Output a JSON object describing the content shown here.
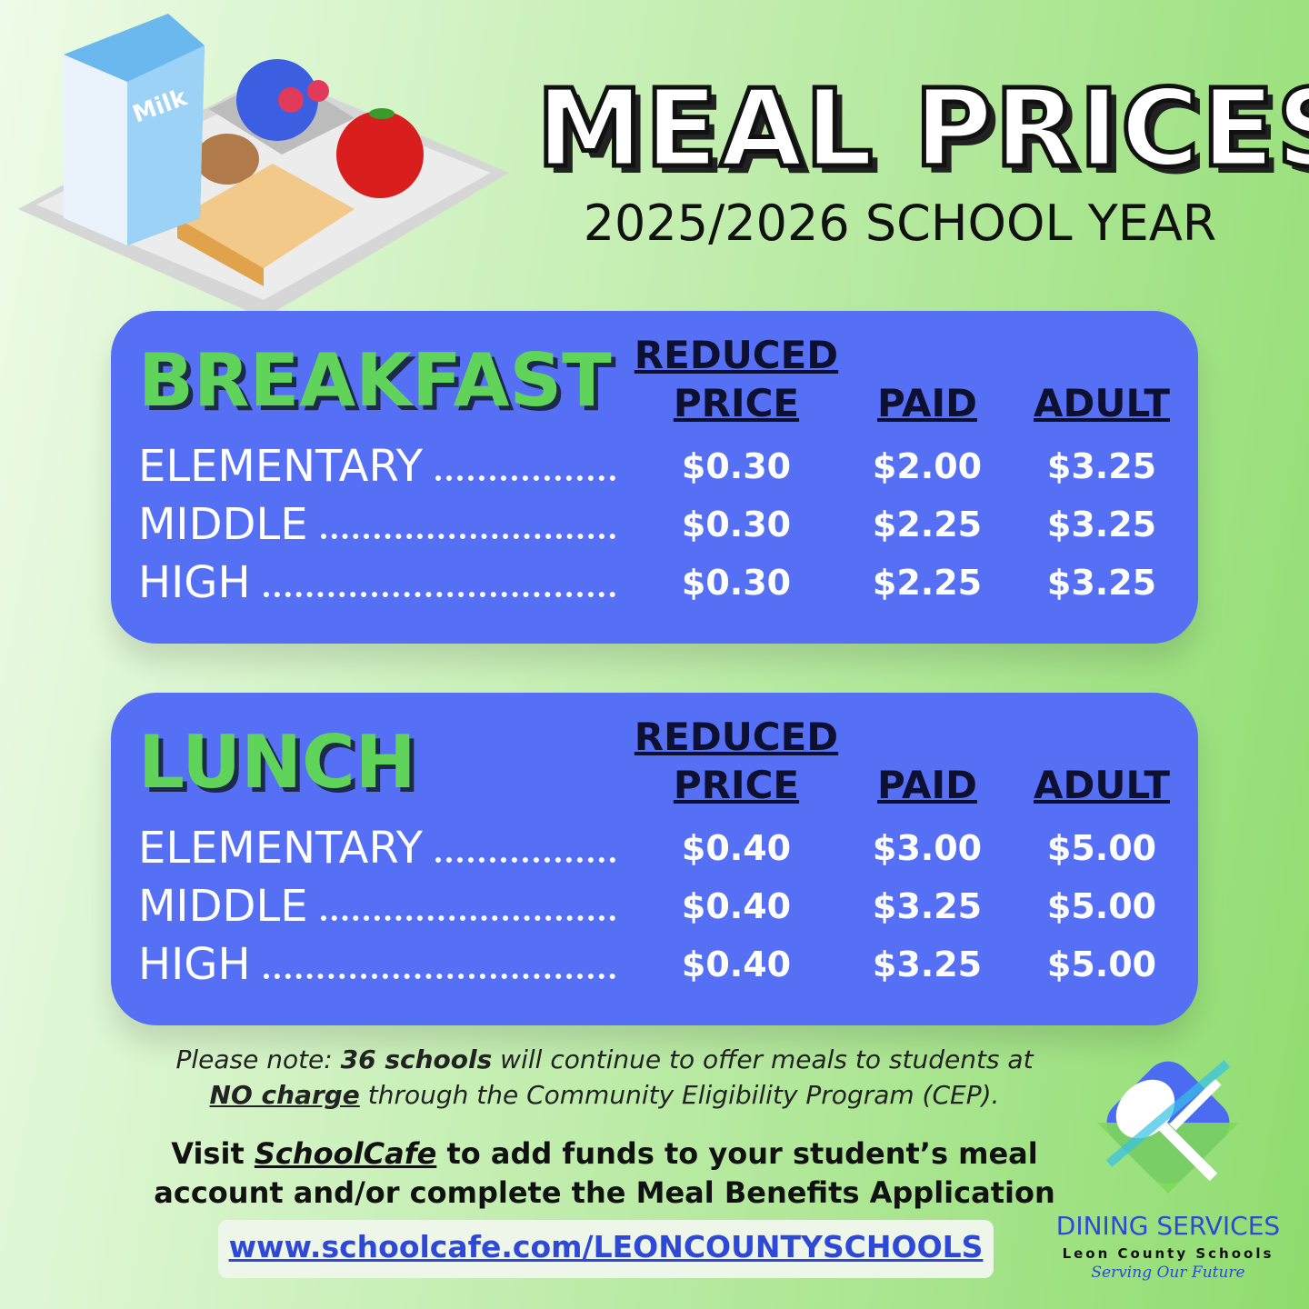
{
  "header": {
    "title": "MEAL PRICES",
    "subtitle": "2025/2026 SCHOOL YEAR"
  },
  "tables": [
    {
      "title": "BREAKFAST",
      "columns": [
        "REDUCED PRICE",
        "PAID",
        "ADULT"
      ],
      "rows": [
        {
          "label": "ELEMENTARY",
          "values": [
            "$0.30",
            "$2.00",
            "$3.25"
          ]
        },
        {
          "label": "MIDDLE",
          "values": [
            "$0.30",
            "$2.25",
            "$3.25"
          ]
        },
        {
          "label": "HIGH",
          "values": [
            "$0.30",
            "$2.25",
            "$3.25"
          ]
        }
      ]
    },
    {
      "title": "LUNCH",
      "columns": [
        "REDUCED PRICE",
        "PAID",
        "ADULT"
      ],
      "rows": [
        {
          "label": "ELEMENTARY",
          "values": [
            "$0.40",
            "$3.00",
            "$5.00"
          ]
        },
        {
          "label": "MIDDLE",
          "values": [
            "$0.40",
            "$3.25",
            "$5.00"
          ]
        },
        {
          "label": "HIGH",
          "values": [
            "$0.40",
            "$3.25",
            "$5.00"
          ]
        }
      ]
    }
  ],
  "note": {
    "parts": [
      "Please note: ",
      "36 schools",
      " will continue to offer meals to students at ",
      "NO charge",
      " through the Community Eligibility Program (CEP)."
    ]
  },
  "visit": {
    "parts": [
      "Visit ",
      "SchoolCafe",
      " to add funds to your student’s meal account and/or complete the Meal Benefits Application"
    ]
  },
  "url": "www.schoolcafe.com/LEONCOUNTYSCHOOLS",
  "logo": {
    "name": "DINING SERVICES",
    "org": "Leon County Schools",
    "tagline": "Serving Our Future"
  }
}
